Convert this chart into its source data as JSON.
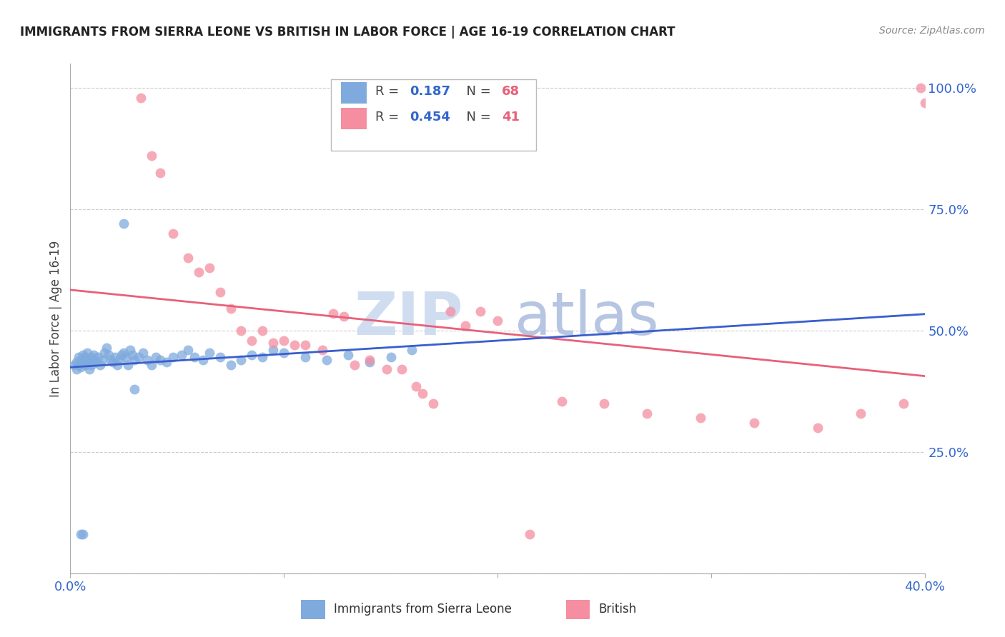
{
  "title": "IMMIGRANTS FROM SIERRA LEONE VS BRITISH IN LABOR FORCE | AGE 16-19 CORRELATION CHART",
  "source": "Source: ZipAtlas.com",
  "ylabel": "In Labor Force | Age 16-19",
  "xlim": [
    0.0,
    0.4
  ],
  "ylim": [
    0.0,
    1.05
  ],
  "blue_color": "#7FAADD",
  "pink_color": "#F48EA0",
  "blue_line_color": "#3A5FCD",
  "pink_line_color": "#E8607A",
  "dashed_color": "#AABBDD",
  "grid_color": "#cccccc",
  "scatter_blue_x": [
    0.002,
    0.003,
    0.003,
    0.004,
    0.004,
    0.005,
    0.005,
    0.006,
    0.006,
    0.007,
    0.007,
    0.008,
    0.008,
    0.009,
    0.009,
    0.01,
    0.01,
    0.011,
    0.011,
    0.012,
    0.013,
    0.014,
    0.015,
    0.016,
    0.017,
    0.018,
    0.019,
    0.02,
    0.021,
    0.022,
    0.023,
    0.024,
    0.025,
    0.026,
    0.027,
    0.028,
    0.029,
    0.03,
    0.032,
    0.034,
    0.036,
    0.038,
    0.04,
    0.042,
    0.045,
    0.048,
    0.052,
    0.055,
    0.058,
    0.062,
    0.065,
    0.07,
    0.075,
    0.08,
    0.085,
    0.09,
    0.095,
    0.1,
    0.11,
    0.12,
    0.13,
    0.14,
    0.15,
    0.16,
    0.005,
    0.006,
    0.025,
    0.03
  ],
  "scatter_blue_y": [
    0.43,
    0.435,
    0.42,
    0.445,
    0.43,
    0.44,
    0.425,
    0.45,
    0.435,
    0.445,
    0.43,
    0.44,
    0.455,
    0.435,
    0.42,
    0.445,
    0.43,
    0.44,
    0.45,
    0.435,
    0.445,
    0.43,
    0.44,
    0.455,
    0.465,
    0.45,
    0.44,
    0.435,
    0.445,
    0.43,
    0.44,
    0.45,
    0.455,
    0.445,
    0.43,
    0.46,
    0.45,
    0.44,
    0.445,
    0.455,
    0.44,
    0.43,
    0.445,
    0.44,
    0.435,
    0.445,
    0.45,
    0.46,
    0.445,
    0.44,
    0.455,
    0.445,
    0.43,
    0.44,
    0.45,
    0.445,
    0.46,
    0.455,
    0.445,
    0.44,
    0.45,
    0.435,
    0.445,
    0.46,
    0.08,
    0.08,
    0.72,
    0.38
  ],
  "scatter_pink_x": [
    0.033,
    0.038,
    0.042,
    0.048,
    0.055,
    0.06,
    0.065,
    0.07,
    0.075,
    0.08,
    0.085,
    0.09,
    0.095,
    0.1,
    0.105,
    0.11,
    0.118,
    0.123,
    0.128,
    0.133,
    0.14,
    0.148,
    0.155,
    0.162,
    0.165,
    0.17,
    0.178,
    0.185,
    0.192,
    0.2,
    0.215,
    0.23,
    0.25,
    0.27,
    0.295,
    0.32,
    0.35,
    0.37,
    0.39,
    0.4,
    0.398
  ],
  "scatter_pink_y": [
    0.98,
    0.86,
    0.825,
    0.7,
    0.65,
    0.62,
    0.63,
    0.58,
    0.545,
    0.5,
    0.48,
    0.5,
    0.475,
    0.48,
    0.47,
    0.47,
    0.46,
    0.535,
    0.53,
    0.43,
    0.44,
    0.42,
    0.42,
    0.385,
    0.37,
    0.35,
    0.54,
    0.51,
    0.54,
    0.52,
    0.08,
    0.355,
    0.35,
    0.33,
    0.32,
    0.31,
    0.3,
    0.33,
    0.35,
    0.97,
    1.0
  ]
}
